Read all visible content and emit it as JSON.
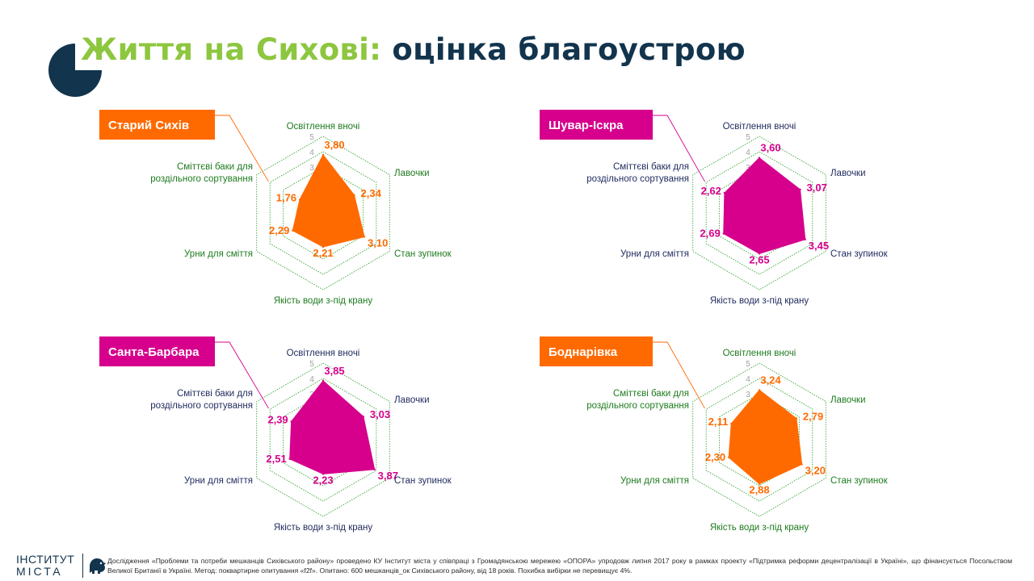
{
  "title": {
    "accent": "Життя на Сихові:",
    "main": "оцінка благоустрою"
  },
  "colors": {
    "orange": "#ff6a00",
    "magenta": "#d6008c",
    "navy": "#12344d",
    "lime": "#8dc63f",
    "grid": "#2e9d2e",
    "tick": "#a0a0a0"
  },
  "chart_data": [
    {
      "type": "radar",
      "title": "Старий Сихів",
      "accent": "orange",
      "rmax": 5,
      "ticks": [
        "1",
        "2",
        "3",
        "4",
        "5"
      ],
      "label_style": "green",
      "categories": [
        "Освітлення вночі",
        "Лавочки",
        "Стан зупинок",
        "Якість води з-під крану",
        "Урни для сміття",
        "Сміттєві баки для роздільного сортування"
      ],
      "values": [
        3.8,
        2.34,
        3.1,
        2.21,
        2.29,
        1.76
      ],
      "value_labels": [
        "3,80",
        "2,34",
        "3,10",
        "2,21",
        "2,29",
        "1,76"
      ]
    },
    {
      "type": "radar",
      "title": "Шувар-Іскра",
      "accent": "magenta",
      "rmax": 5,
      "ticks": [
        "1",
        "2",
        "3",
        "4",
        "5"
      ],
      "label_style": "navy",
      "categories": [
        "Освітлення вночі",
        "Лавочки",
        "Стан зупинок",
        "Якість води з-під крану",
        "Урни для сміття",
        "Сміттєві баки для роздільного сортування"
      ],
      "values": [
        3.6,
        3.07,
        3.45,
        2.65,
        2.69,
        2.62
      ],
      "value_labels": [
        "3,60",
        "3,07",
        "3,45",
        "2,65",
        "2,69",
        "2,62"
      ]
    },
    {
      "type": "radar",
      "title": "Санта-Барбара",
      "accent": "magenta",
      "rmax": 5,
      "ticks": [
        "1",
        "2",
        "3",
        "4",
        "5"
      ],
      "label_style": "navy",
      "categories": [
        "Освітлення вночі",
        "Лавочки",
        "Стан зупинок",
        "Якість води з-під крану",
        "Урни для сміття",
        "Сміттєві баки для роздільного сортування"
      ],
      "values": [
        3.85,
        3.03,
        3.87,
        2.23,
        2.51,
        2.39
      ],
      "value_labels": [
        "3,85",
        "3,03",
        "3,87",
        "2,23",
        "2,51",
        "2,39"
      ]
    },
    {
      "type": "radar",
      "title": "Боднарівка",
      "accent": "orange",
      "rmax": 5,
      "ticks": [
        "1",
        "2",
        "3",
        "4",
        "5"
      ],
      "label_style": "green",
      "categories": [
        "Освітлення вночі",
        "Лавочки",
        "Стан зупинок",
        "Якість води з-під крану",
        "Урни для сміття",
        "Сміттєві баки для роздільного сортування"
      ],
      "values": [
        3.24,
        2.79,
        3.2,
        2.88,
        2.3,
        2.11
      ],
      "value_labels": [
        "3,24",
        "2,79",
        "3,20",
        "2,88",
        "2,30",
        "2,11"
      ]
    }
  ],
  "logo": {
    "line1": "ІНСТИТУТ",
    "line2": "МІСТА"
  },
  "footer": {
    "note": "Дослідження «Проблеми та потреби мешканців Сихівського району» проведено КУ Інститут міста у співпраці з Громадянською мережею «ОПОРА» упродовж липня 2017 року в рамках проекту «Підтримка реформи децентралізації в Україні», що фінансується Посольством Великої Британії в Україні. Метод: поквартирне опитування «f2f». Опитано: 600 мешканців_ок Сихівського району, від 18 років. Похибка вибірки не перевищує 4%."
  }
}
